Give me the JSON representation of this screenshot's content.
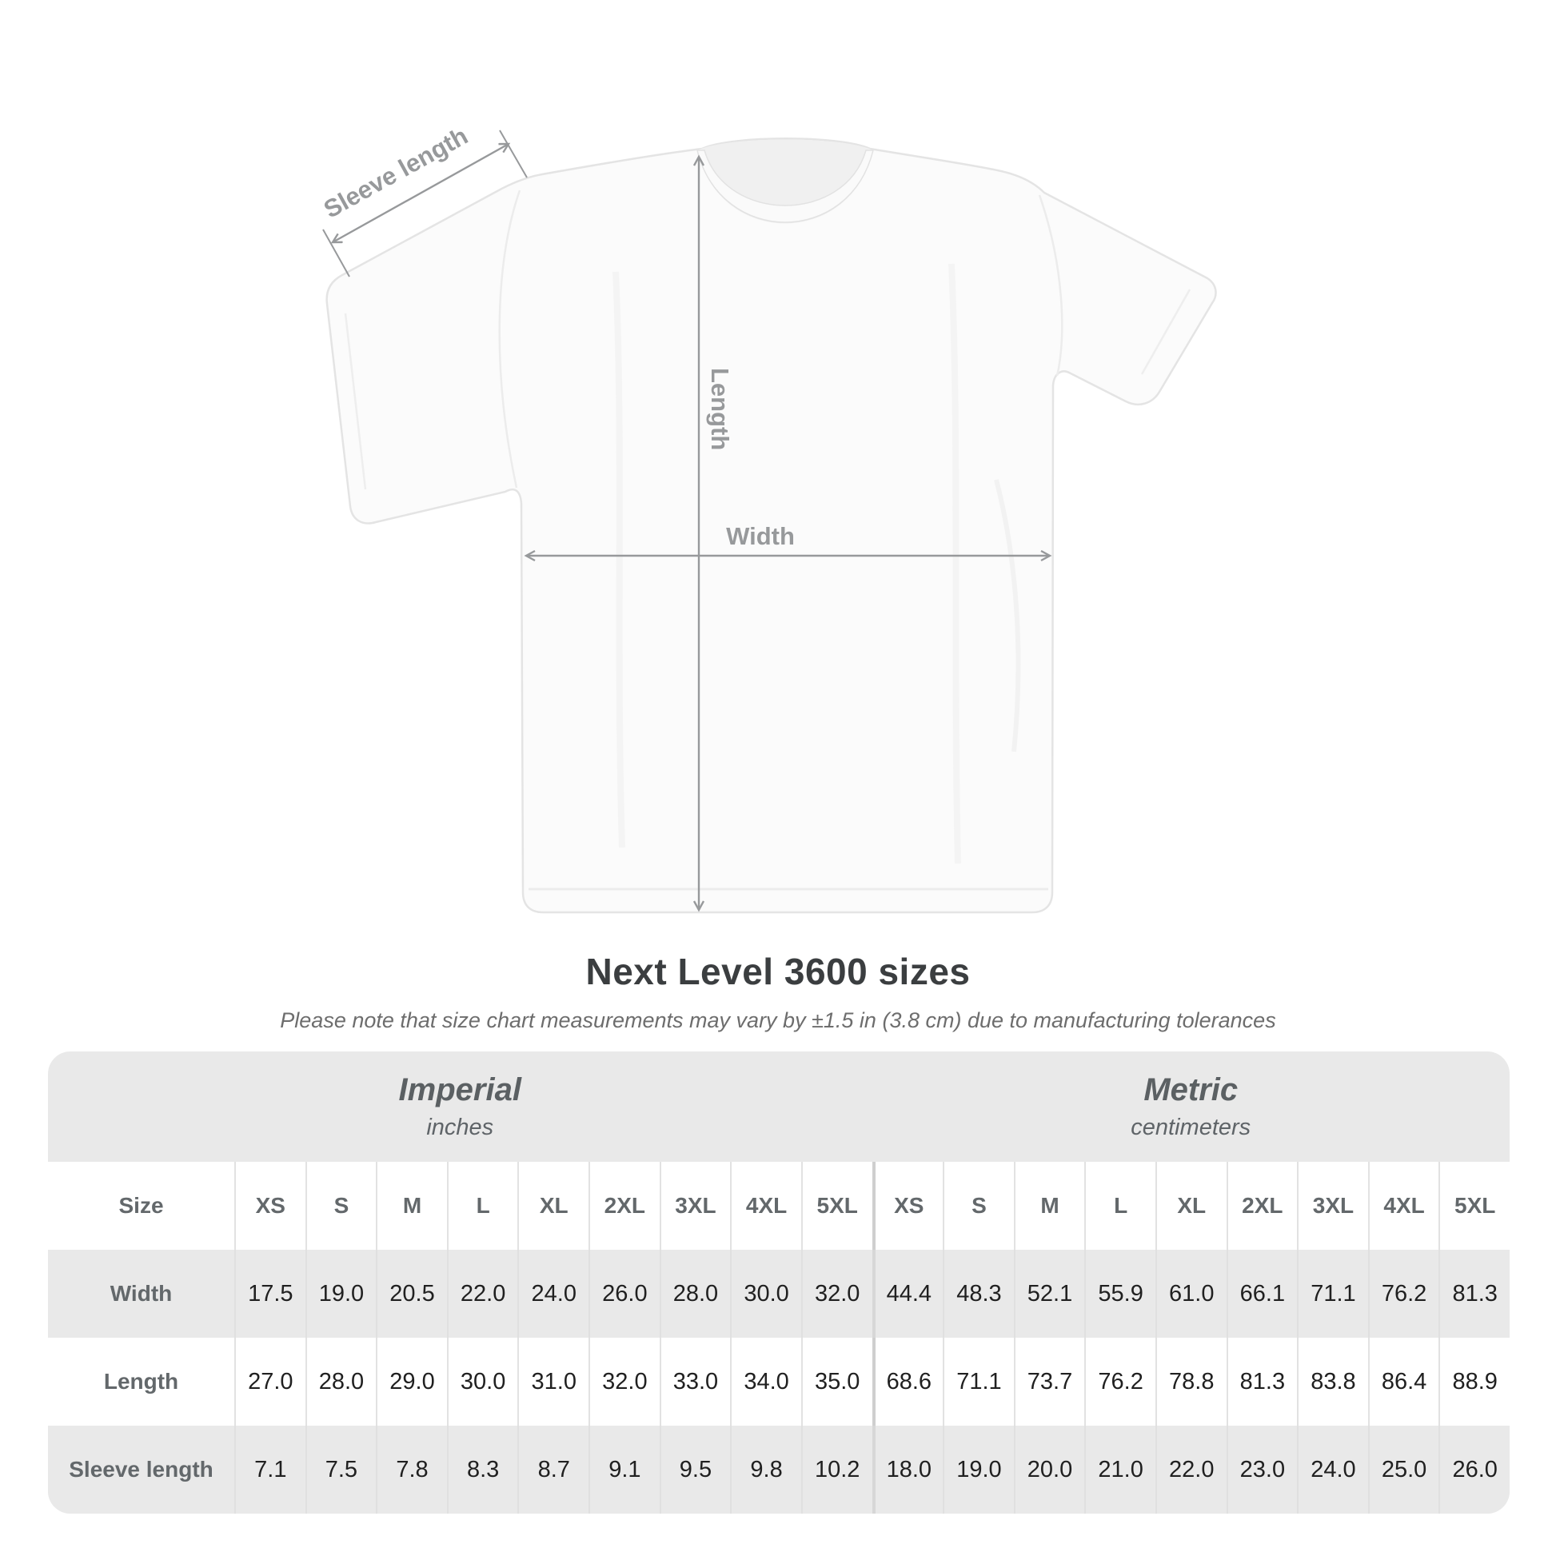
{
  "diagram": {
    "labels": {
      "sleeve_length": "Sleeve length",
      "length": "Length",
      "width": "Width"
    }
  },
  "title": "Next Level 3600 sizes",
  "subtitle": "Please note that size chart measurements may vary by ±1.5 in (3.8 cm) due to manufacturing tolerances",
  "table": {
    "unit_groups": [
      {
        "label": "Imperial",
        "sublabel": "inches"
      },
      {
        "label": "Metric",
        "sublabel": "centimeters"
      }
    ],
    "size_header": "Size",
    "sizes": [
      "XS",
      "S",
      "M",
      "L",
      "XL",
      "2XL",
      "3XL",
      "4XL",
      "5XL",
      "XS",
      "S",
      "M",
      "L",
      "XL",
      "2XL",
      "3XL",
      "4XL",
      "5XL"
    ],
    "rows": [
      {
        "label": "Width",
        "values": [
          "17.5",
          "19.0",
          "20.5",
          "22.0",
          "24.0",
          "26.0",
          "28.0",
          "30.0",
          "32.0",
          "44.4",
          "48.3",
          "52.1",
          "55.9",
          "61.0",
          "66.1",
          "71.1",
          "76.2",
          "81.3"
        ]
      },
      {
        "label": "Length",
        "values": [
          "27.0",
          "28.0",
          "29.0",
          "30.0",
          "31.0",
          "32.0",
          "33.0",
          "34.0",
          "35.0",
          "68.6",
          "71.1",
          "73.7",
          "76.2",
          "78.8",
          "81.3",
          "83.8",
          "86.4",
          "88.9"
        ]
      },
      {
        "label": "Sleeve length",
        "values": [
          "7.1",
          "7.5",
          "7.8",
          "8.3",
          "8.7",
          "9.1",
          "9.5",
          "9.8",
          "10.2",
          "18.0",
          "19.0",
          "20.0",
          "21.0",
          "22.0",
          "23.0",
          "24.0",
          "25.0",
          "26.0"
        ]
      }
    ]
  },
  "colors": {
    "table_bg": "#e9e9e9",
    "row_alt": "#ffffff",
    "divider": "#e2e2e2",
    "group_divider": "#cfcfcf",
    "diagram_gray": "#97999b",
    "title_text": "#3b3e40",
    "value_text": "#202020",
    "header_text": "#63686b"
  }
}
